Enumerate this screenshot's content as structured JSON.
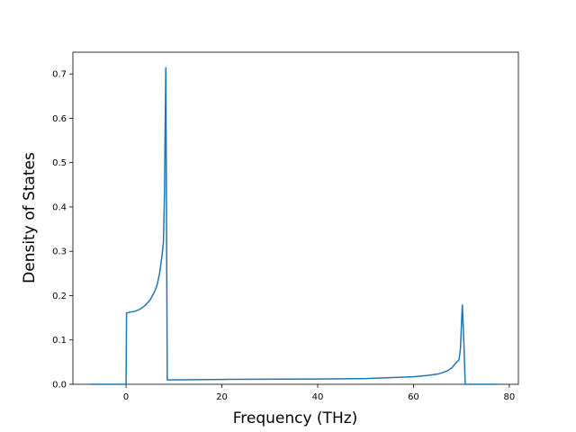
{
  "chart_data": {
    "type": "line",
    "xlabel": "Frequency (THz)",
    "ylabel": "Density of States",
    "x": [
      -7.3,
      0,
      0.1,
      2,
      3,
      4,
      5,
      6,
      6.5,
      7,
      7.5,
      7.8,
      8.0,
      8.3,
      8.6,
      20,
      40,
      50,
      55,
      60,
      63,
      65,
      66,
      67,
      68,
      69,
      69.5,
      69.8,
      70.2,
      70.5,
      70.8,
      77.6
    ],
    "series": [
      {
        "color": "#1f77b4",
        "values": [
          0,
          0,
          0.161,
          0.165,
          0.17,
          0.178,
          0.19,
          0.21,
          0.225,
          0.25,
          0.29,
          0.32,
          0.42,
          0.715,
          0.01,
          0.011,
          0.012,
          0.013,
          0.015,
          0.017,
          0.02,
          0.023,
          0.026,
          0.03,
          0.037,
          0.05,
          0.055,
          0.08,
          0.18,
          0.1,
          0,
          0
        ]
      }
    ],
    "xlim": [
      -11.1,
      81.9
    ],
    "ylim": [
      0,
      0.749
    ],
    "xticks": [
      0,
      20,
      40,
      60,
      80
    ],
    "yticks": [
      {
        "value": 0,
        "label": "0.0"
      },
      0.1,
      0.2,
      0.3,
      0.4,
      0.5,
      0.6,
      0.7
    ]
  }
}
